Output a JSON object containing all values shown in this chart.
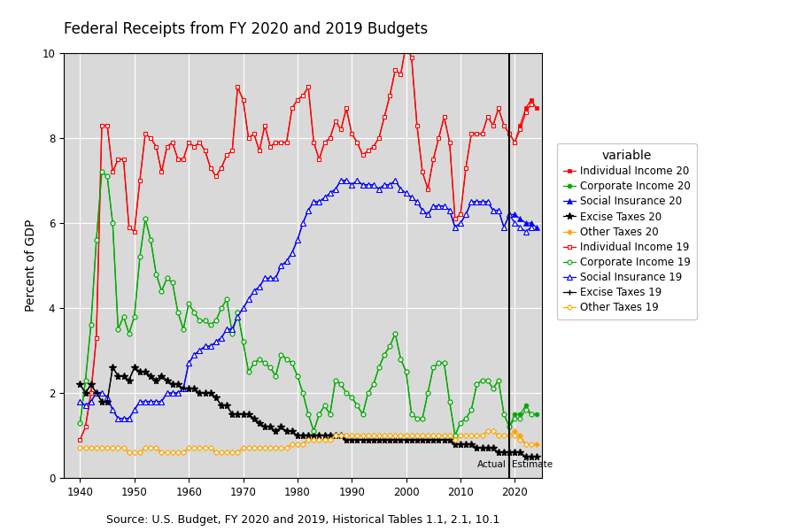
{
  "title": "Federal Receipts from FY 2020 and 2019 Budgets",
  "xlabel": "Source: U.S. Budget, FY 2020 and 2019, Historical Tables 1.1, 2.1, 10.1",
  "ylabel": "Percent of GDP",
  "ylim": [
    0,
    10
  ],
  "xlim": [
    1937,
    2025
  ],
  "vline_x": 2019,
  "vline_label_left": "Actual",
  "vline_label_right": "Estimate",
  "bg_color": "#d9d9d9",
  "grid_color": "white",
  "years_20": [
    1940,
    1941,
    1942,
    1943,
    1944,
    1945,
    1946,
    1947,
    1948,
    1949,
    1950,
    1951,
    1952,
    1953,
    1954,
    1955,
    1956,
    1957,
    1958,
    1959,
    1960,
    1961,
    1962,
    1963,
    1964,
    1965,
    1966,
    1967,
    1968,
    1969,
    1970,
    1971,
    1972,
    1973,
    1974,
    1975,
    1976,
    1977,
    1978,
    1979,
    1980,
    1981,
    1982,
    1983,
    1984,
    1985,
    1986,
    1987,
    1988,
    1989,
    1990,
    1991,
    1992,
    1993,
    1994,
    1995,
    1996,
    1997,
    1998,
    1999,
    2000,
    2001,
    2002,
    2003,
    2004,
    2005,
    2006,
    2007,
    2008,
    2009,
    2010,
    2011,
    2012,
    2013,
    2014,
    2015,
    2016,
    2017,
    2018,
    2019,
    2020,
    2021,
    2022,
    2023,
    2024
  ],
  "ind_inc_20": [
    0.9,
    1.2,
    2.0,
    3.3,
    8.3,
    8.3,
    7.2,
    7.5,
    7.5,
    5.9,
    5.8,
    7.0,
    8.1,
    8.0,
    7.8,
    7.2,
    7.8,
    7.9,
    7.5,
    7.5,
    7.9,
    7.8,
    7.9,
    7.7,
    7.3,
    7.1,
    7.3,
    7.6,
    7.7,
    9.2,
    8.9,
    8.0,
    8.1,
    7.7,
    8.3,
    7.8,
    7.9,
    7.9,
    7.9,
    8.7,
    8.9,
    9.0,
    9.2,
    7.9,
    7.5,
    7.9,
    8.0,
    8.4,
    8.2,
    8.7,
    8.1,
    7.9,
    7.6,
    7.7,
    7.8,
    8.0,
    8.5,
    9.0,
    9.6,
    9.5,
    10.2,
    9.9,
    8.3,
    7.2,
    6.8,
    7.5,
    8.0,
    8.5,
    7.9,
    6.1,
    6.2,
    7.3,
    8.1,
    8.1,
    8.1,
    8.5,
    8.3,
    8.7,
    8.3,
    8.1,
    7.9,
    8.3,
    8.7,
    8.9,
    8.7
  ],
  "corp_inc_20": [
    1.3,
    2.3,
    3.6,
    5.6,
    7.2,
    7.1,
    6.0,
    3.5,
    3.8,
    3.4,
    3.8,
    5.2,
    6.1,
    5.6,
    4.8,
    4.4,
    4.7,
    4.6,
    3.9,
    3.5,
    4.1,
    3.9,
    3.7,
    3.7,
    3.6,
    3.7,
    4.0,
    4.2,
    3.4,
    3.9,
    3.2,
    2.5,
    2.7,
    2.8,
    2.7,
    2.6,
    2.4,
    2.9,
    2.8,
    2.7,
    2.4,
    2.0,
    1.5,
    1.1,
    1.5,
    1.7,
    1.5,
    2.3,
    2.2,
    2.0,
    1.9,
    1.7,
    1.5,
    2.0,
    2.2,
    2.6,
    2.9,
    3.1,
    3.4,
    2.8,
    2.5,
    1.5,
    1.4,
    1.4,
    2.0,
    2.6,
    2.7,
    2.7,
    1.8,
    1.0,
    1.3,
    1.4,
    1.6,
    2.2,
    2.3,
    2.3,
    2.1,
    2.3,
    1.5,
    1.2,
    1.5,
    1.5,
    1.7,
    1.5,
    1.5
  ],
  "soc_ins_20": [
    1.8,
    1.7,
    1.8,
    2.0,
    2.0,
    1.9,
    1.6,
    1.4,
    1.4,
    1.4,
    1.6,
    1.8,
    1.8,
    1.8,
    1.8,
    1.8,
    2.0,
    2.0,
    2.0,
    2.1,
    2.7,
    2.9,
    3.0,
    3.1,
    3.1,
    3.2,
    3.3,
    3.5,
    3.5,
    3.8,
    4.0,
    4.2,
    4.4,
    4.5,
    4.7,
    4.7,
    4.7,
    5.0,
    5.1,
    5.3,
    5.6,
    6.0,
    6.3,
    6.5,
    6.5,
    6.6,
    6.7,
    6.8,
    7.0,
    7.0,
    6.9,
    7.0,
    6.9,
    6.9,
    6.9,
    6.8,
    6.9,
    6.9,
    7.0,
    6.8,
    6.7,
    6.6,
    6.5,
    6.3,
    6.2,
    6.4,
    6.4,
    6.4,
    6.3,
    5.9,
    6.0,
    6.2,
    6.5,
    6.5,
    6.5,
    6.5,
    6.3,
    6.3,
    5.9,
    6.2,
    6.2,
    6.1,
    6.0,
    6.0,
    5.9
  ],
  "excise_20": [
    2.2,
    2.0,
    2.2,
    2.0,
    1.8,
    1.8,
    2.6,
    2.4,
    2.4,
    2.3,
    2.6,
    2.5,
    2.5,
    2.4,
    2.3,
    2.4,
    2.3,
    2.2,
    2.2,
    2.1,
    2.1,
    2.1,
    2.0,
    2.0,
    2.0,
    1.9,
    1.7,
    1.7,
    1.5,
    1.5,
    1.5,
    1.5,
    1.4,
    1.3,
    1.2,
    1.2,
    1.1,
    1.2,
    1.1,
    1.1,
    1.0,
    1.0,
    1.0,
    1.0,
    1.0,
    1.0,
    1.0,
    1.0,
    1.0,
    0.9,
    0.9,
    0.9,
    0.9,
    0.9,
    0.9,
    0.9,
    0.9,
    0.9,
    0.9,
    0.9,
    0.9,
    0.9,
    0.9,
    0.9,
    0.9,
    0.9,
    0.9,
    0.9,
    0.9,
    0.8,
    0.8,
    0.8,
    0.8,
    0.7,
    0.7,
    0.7,
    0.7,
    0.6,
    0.6,
    0.6,
    0.6,
    0.6,
    0.5,
    0.5,
    0.5
  ],
  "other_20": [
    0.7,
    0.7,
    0.7,
    0.7,
    0.7,
    0.7,
    0.7,
    0.7,
    0.7,
    0.6,
    0.6,
    0.6,
    0.7,
    0.7,
    0.7,
    0.6,
    0.6,
    0.6,
    0.6,
    0.6,
    0.7,
    0.7,
    0.7,
    0.7,
    0.7,
    0.6,
    0.6,
    0.6,
    0.6,
    0.6,
    0.7,
    0.7,
    0.7,
    0.7,
    0.7,
    0.7,
    0.7,
    0.7,
    0.7,
    0.8,
    0.8,
    0.8,
    0.9,
    0.9,
    0.9,
    0.9,
    0.9,
    1.0,
    1.0,
    1.0,
    1.0,
    1.0,
    1.0,
    1.0,
    1.0,
    1.0,
    1.0,
    1.0,
    1.0,
    1.0,
    1.0,
    1.0,
    1.0,
    1.0,
    1.0,
    1.0,
    1.0,
    1.0,
    1.0,
    0.9,
    1.0,
    1.0,
    1.0,
    1.0,
    1.0,
    1.1,
    1.1,
    1.0,
    1.0,
    1.0,
    1.1,
    1.0,
    0.8,
    0.8,
    0.8
  ],
  "years_19": [
    1940,
    1941,
    1942,
    1943,
    1944,
    1945,
    1946,
    1947,
    1948,
    1949,
    1950,
    1951,
    1952,
    1953,
    1954,
    1955,
    1956,
    1957,
    1958,
    1959,
    1960,
    1961,
    1962,
    1963,
    1964,
    1965,
    1966,
    1967,
    1968,
    1969,
    1970,
    1971,
    1972,
    1973,
    1974,
    1975,
    1976,
    1977,
    1978,
    1979,
    1980,
    1981,
    1982,
    1983,
    1984,
    1985,
    1986,
    1987,
    1988,
    1989,
    1990,
    1991,
    1992,
    1993,
    1994,
    1995,
    1996,
    1997,
    1998,
    1999,
    2000,
    2001,
    2002,
    2003,
    2004,
    2005,
    2006,
    2007,
    2008,
    2009,
    2010,
    2011,
    2012,
    2013,
    2014,
    2015,
    2016,
    2017,
    2018,
    2019,
    2020,
    2021,
    2022,
    2023
  ],
  "ind_inc_19": [
    0.9,
    1.2,
    2.0,
    3.3,
    8.3,
    8.3,
    7.2,
    7.5,
    7.5,
    5.9,
    5.8,
    7.0,
    8.1,
    8.0,
    7.8,
    7.2,
    7.8,
    7.9,
    7.5,
    7.5,
    7.9,
    7.8,
    7.9,
    7.7,
    7.3,
    7.1,
    7.3,
    7.6,
    7.7,
    9.2,
    8.9,
    8.0,
    8.1,
    7.7,
    8.3,
    7.8,
    7.9,
    7.9,
    7.9,
    8.7,
    8.9,
    9.0,
    9.2,
    7.9,
    7.5,
    7.9,
    8.0,
    8.4,
    8.2,
    8.7,
    8.1,
    7.9,
    7.6,
    7.7,
    7.8,
    8.0,
    8.5,
    9.0,
    9.6,
    9.5,
    10.2,
    9.9,
    8.3,
    7.2,
    6.8,
    7.5,
    8.0,
    8.5,
    7.9,
    6.1,
    6.2,
    7.3,
    8.1,
    8.1,
    8.1,
    8.5,
    8.3,
    8.7,
    8.3,
    8.1,
    7.9,
    8.2,
    8.6,
    8.8
  ],
  "corp_inc_19": [
    1.3,
    2.3,
    3.6,
    5.6,
    7.2,
    7.1,
    6.0,
    3.5,
    3.8,
    3.4,
    3.8,
    5.2,
    6.1,
    5.6,
    4.8,
    4.4,
    4.7,
    4.6,
    3.9,
    3.5,
    4.1,
    3.9,
    3.7,
    3.7,
    3.6,
    3.7,
    4.0,
    4.2,
    3.4,
    3.9,
    3.2,
    2.5,
    2.7,
    2.8,
    2.7,
    2.6,
    2.4,
    2.9,
    2.8,
    2.7,
    2.4,
    2.0,
    1.5,
    1.1,
    1.5,
    1.7,
    1.5,
    2.3,
    2.2,
    2.0,
    1.9,
    1.7,
    1.5,
    2.0,
    2.2,
    2.6,
    2.9,
    3.1,
    3.4,
    2.8,
    2.5,
    1.5,
    1.4,
    1.4,
    2.0,
    2.6,
    2.7,
    2.7,
    1.8,
    1.0,
    1.3,
    1.4,
    1.6,
    2.2,
    2.3,
    2.3,
    2.1,
    2.3,
    1.5,
    1.2,
    1.4,
    1.4,
    1.6,
    1.5
  ],
  "soc_ins_19": [
    1.8,
    1.7,
    1.8,
    2.0,
    2.0,
    1.9,
    1.6,
    1.4,
    1.4,
    1.4,
    1.6,
    1.8,
    1.8,
    1.8,
    1.8,
    1.8,
    2.0,
    2.0,
    2.0,
    2.1,
    2.7,
    2.9,
    3.0,
    3.1,
    3.1,
    3.2,
    3.3,
    3.5,
    3.5,
    3.8,
    4.0,
    4.2,
    4.4,
    4.5,
    4.7,
    4.7,
    4.7,
    5.0,
    5.1,
    5.3,
    5.6,
    6.0,
    6.3,
    6.5,
    6.5,
    6.6,
    6.7,
    6.8,
    7.0,
    7.0,
    6.9,
    7.0,
    6.9,
    6.9,
    6.9,
    6.8,
    6.9,
    6.9,
    7.0,
    6.8,
    6.7,
    6.6,
    6.5,
    6.3,
    6.2,
    6.4,
    6.4,
    6.4,
    6.3,
    5.9,
    6.0,
    6.2,
    6.5,
    6.5,
    6.5,
    6.5,
    6.3,
    6.3,
    5.9,
    6.2,
    6.0,
    5.9,
    5.8,
    5.9
  ],
  "excise_19": [
    2.2,
    2.0,
    2.2,
    2.0,
    1.8,
    1.8,
    2.6,
    2.4,
    2.4,
    2.3,
    2.6,
    2.5,
    2.5,
    2.4,
    2.3,
    2.4,
    2.3,
    2.2,
    2.2,
    2.1,
    2.1,
    2.1,
    2.0,
    2.0,
    2.0,
    1.9,
    1.7,
    1.7,
    1.5,
    1.5,
    1.5,
    1.5,
    1.4,
    1.3,
    1.2,
    1.2,
    1.1,
    1.2,
    1.1,
    1.1,
    1.0,
    1.0,
    1.0,
    1.0,
    1.0,
    1.0,
    1.0,
    1.0,
    1.0,
    0.9,
    0.9,
    0.9,
    0.9,
    0.9,
    0.9,
    0.9,
    0.9,
    0.9,
    0.9,
    0.9,
    0.9,
    0.9,
    0.9,
    0.9,
    0.9,
    0.9,
    0.9,
    0.9,
    0.9,
    0.8,
    0.8,
    0.8,
    0.8,
    0.7,
    0.7,
    0.7,
    0.7,
    0.6,
    0.6,
    0.6,
    0.6,
    0.6,
    0.5,
    0.5
  ],
  "other_19": [
    0.7,
    0.7,
    0.7,
    0.7,
    0.7,
    0.7,
    0.7,
    0.7,
    0.7,
    0.6,
    0.6,
    0.6,
    0.7,
    0.7,
    0.7,
    0.6,
    0.6,
    0.6,
    0.6,
    0.6,
    0.7,
    0.7,
    0.7,
    0.7,
    0.7,
    0.6,
    0.6,
    0.6,
    0.6,
    0.6,
    0.7,
    0.7,
    0.7,
    0.7,
    0.7,
    0.7,
    0.7,
    0.7,
    0.7,
    0.8,
    0.8,
    0.8,
    0.9,
    0.9,
    0.9,
    0.9,
    0.9,
    1.0,
    1.0,
    1.0,
    1.0,
    1.0,
    1.0,
    1.0,
    1.0,
    1.0,
    1.0,
    1.0,
    1.0,
    1.0,
    1.0,
    1.0,
    1.0,
    1.0,
    1.0,
    1.0,
    1.0,
    1.0,
    1.0,
    0.9,
    1.0,
    1.0,
    1.0,
    1.0,
    1.0,
    1.1,
    1.1,
    1.0,
    1.0,
    1.0,
    1.0,
    0.9,
    0.8,
    0.8
  ],
  "colors": {
    "red": "#FF0000",
    "green": "#00AA00",
    "blue": "#0000FF",
    "black": "#000000",
    "orange": "#FFA500"
  },
  "legend_labels": {
    "ind20": "Individual Income 20",
    "corp20": "Corporate Income 20",
    "soc20": "Social Insurance 20",
    "exc20": "Excise Taxes 20",
    "oth20": "Other Taxes 20",
    "ind19": "Individual Income 19",
    "corp19": "Corporate Income 19",
    "soc19": "Social Insurance 19",
    "exc19": "Excise Taxes 19",
    "oth19": "Other Taxes 19"
  }
}
